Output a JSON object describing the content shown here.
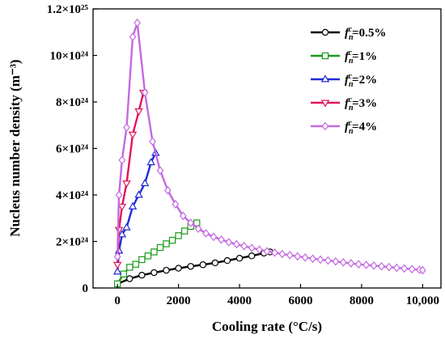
{
  "chart_data": {
    "type": "line",
    "title": "",
    "xlabel": "Cooling rate (°C/s)",
    "ylabel": "Nucleus number density (m⁻³)",
    "xlim": [
      -800,
      10600
    ],
    "ylim": [
      0,
      1.2e+25
    ],
    "x_ticks": [
      0,
      2000,
      4000,
      6000,
      8000,
      10000
    ],
    "x_tick_labels": [
      "0",
      "2000",
      "4000",
      "6000",
      "8000",
      "10,000"
    ],
    "y_ticks": [
      0,
      2e+24,
      4e+24,
      6e+24,
      8e+24,
      1e+25,
      1.2e+25
    ],
    "y_tick_labels": [
      "0",
      "2×10²⁴",
      "4×10²⁴",
      "6×10²⁴",
      "8×10²⁴",
      "10×10²⁴",
      "1.2×10²⁵"
    ],
    "grid": false,
    "legend_position": "top-right",
    "series": [
      {
        "name": "fnc=0.5%",
        "color": "#000000",
        "marker": "circle",
        "x": [
          0,
          400,
          800,
          1200,
          1600,
          2000,
          2400,
          2800,
          3200,
          3600,
          4000,
          4400,
          4800,
          5000
        ],
        "y": [
          1.8e+23,
          4e+23,
          5.5e+23,
          6.6e+23,
          7.6e+23,
          8.5e+23,
          9.3e+23,
          1e+24,
          1.08e+24,
          1.18e+24,
          1.28e+24,
          1.38e+24,
          1.5e+24,
          1.55e+24
        ]
      },
      {
        "name": "fnc=1%",
        "color": "#1a9a1a",
        "marker": "square",
        "x": [
          0,
          200,
          400,
          600,
          800,
          1000,
          1200,
          1400,
          1600,
          1800,
          2000,
          2200,
          2400,
          2600
        ],
        "y": [
          1.8e+23,
          6e+23,
          8.9e+23,
          1.02e+24,
          1.22e+24,
          1.38e+24,
          1.55e+24,
          1.74e+24,
          1.9e+24,
          2.05e+24,
          2.25e+24,
          2.45e+24,
          2.65e+24,
          2.8e+24
        ]
      },
      {
        "name": "fnc=2%",
        "color": "#1f2ad6",
        "marker": "triangle-up",
        "x": [
          0,
          50,
          150,
          300,
          500,
          700,
          900,
          1100,
          1250
        ],
        "y": [
          7e+23,
          1.6e+24,
          2.3e+24,
          2.6e+24,
          3.5e+24,
          4e+24,
          4.5e+24,
          5.4e+24,
          5.8e+24
        ]
      },
      {
        "name": "fnc=3%",
        "color": "#e0145a",
        "marker": "triangle-down",
        "x": [
          0,
          50,
          150,
          300,
          500,
          700,
          850
        ],
        "y": [
          1e+24,
          2.5e+24,
          3.5e+24,
          4.5e+24,
          6.6e+24,
          7.6e+24,
          8.4e+24
        ]
      },
      {
        "name": "fnc=4%",
        "color": "#c469e0",
        "marker": "diamond",
        "x": [
          0,
          50,
          150,
          300,
          500,
          650,
          900,
          1150,
          1400,
          1650,
          1900,
          2150,
          2400,
          2650,
          2900,
          3150,
          3400,
          3650,
          3900,
          4150,
          4400,
          4650,
          4900,
          5150,
          5400,
          5650,
          5900,
          6150,
          6400,
          6650,
          6900,
          7150,
          7400,
          7650,
          7900,
          8150,
          8400,
          8650,
          8900,
          9150,
          9400,
          9650,
          9900,
          10000
        ],
        "y": [
          1.35e+24,
          4e+24,
          5.5e+24,
          6.9e+24,
          1.08e+25,
          1.14e+25,
          8.4e+24,
          6.3e+24,
          5.05e+24,
          4.2e+24,
          3.6e+24,
          3.1e+24,
          2.8e+24,
          2.55e+24,
          2.35e+24,
          2.2e+24,
          2.08e+24,
          1.97e+24,
          1.88e+24,
          1.8e+24,
          1.72e+24,
          1.65e+24,
          1.58e+24,
          1.52e+24,
          1.46e+24,
          1.41e+24,
          1.36e+24,
          1.31e+24,
          1.26e+24,
          1.22e+24,
          1.18e+24,
          1.14e+24,
          1.1e+24,
          1.06e+24,
          1.02e+24,
          9.9e+23,
          9.6e+23,
          9.3e+23,
          9e+23,
          8.7e+23,
          8.4e+23,
          8.1e+23,
          7.8e+23,
          7.6e+23
        ]
      }
    ]
  }
}
